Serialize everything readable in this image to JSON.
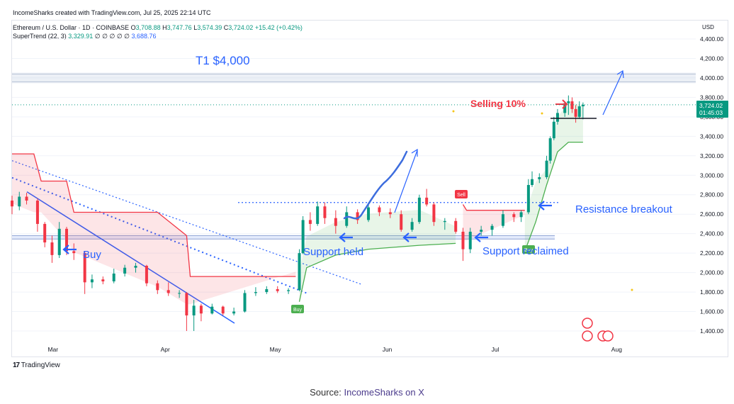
{
  "header": {
    "created": "IncomeSharks created with TradingView.com, Jul 25, 2025 22:14 UTC",
    "symbol": "Ethereum / U.S. Dollar · 1D · COINBASE",
    "ohlc": {
      "o_label": "O",
      "o": "3,708.88",
      "h_label": "H",
      "h": "3,747.76",
      "l_label": "L",
      "l": "3,574.39",
      "c_label": "C",
      "c": "3,724.02",
      "change": "+15.42 (+0.42%)"
    },
    "indicator": "SuperTrend (22, 3)",
    "indicator_value": "3,329.91",
    "indicator_nulls": "∅ ∅ ∅ ∅ ∅",
    "indicator_value2": "3,688.76"
  },
  "axis": {
    "currency": "USD",
    "y_ticks": [
      "4,400.00",
      "4,200.00",
      "4,000.00",
      "3,800.00",
      "3,600.00",
      "3,400.00",
      "3,200.00",
      "3,000.00",
      "2,800.00",
      "2,600.00",
      "2,400.00",
      "2,200.00",
      "2,000.00",
      "1,800.00",
      "1,600.00",
      "1,400.00"
    ],
    "x_ticks": [
      "Mar",
      "Apr",
      "May",
      "Jun",
      "Jul",
      "Aug"
    ],
    "price_tag": "3,724.02",
    "countdown": "01:45:03"
  },
  "annotations": {
    "t1": "T1 $4,000",
    "selling": "Selling 10%",
    "buy": "Buy",
    "support_held": "Support held",
    "support_reclaimed": "Support reclaimed",
    "resistance_breakout": "Resistance breakout",
    "tag_buy1": "Buy",
    "tag_buy2": "Buy",
    "tag_sell": "Sell"
  },
  "branding": {
    "logo_mark": "17",
    "logo_text": "TradingView"
  },
  "footer": {
    "prefix": "Source: ",
    "link": "IncomeSharks on X"
  },
  "colors": {
    "up": "#089981",
    "down": "#f23645",
    "accent": "#2962ff",
    "supertrend_up": "#4caf50",
    "supertrend_down": "#f23645"
  },
  "chart_data": {
    "type": "candlestick",
    "title": "Ethereum / U.S. Dollar · 1D · COINBASE",
    "ylabel": "USD",
    "ylim": [
      1300,
      4500
    ],
    "x_range": [
      "2025-02-18",
      "2025-08-25"
    ],
    "levels": [
      {
        "name": "T1 $4,000",
        "value": 4000
      },
      {
        "name": "support zone",
        "value": 2360
      },
      {
        "name": "resistance dotted",
        "value": 2720
      }
    ],
    "candles": [
      {
        "date": "2025-02-18",
        "o": 2740,
        "h": 2790,
        "l": 2600,
        "c": 2680
      },
      {
        "date": "2025-02-20",
        "o": 2680,
        "h": 2830,
        "l": 2640,
        "c": 2780
      },
      {
        "date": "2025-02-22",
        "o": 2780,
        "h": 2820,
        "l": 2700,
        "c": 2740
      },
      {
        "date": "2025-02-25",
        "o": 2740,
        "h": 2760,
        "l": 2420,
        "c": 2500
      },
      {
        "date": "2025-02-27",
        "o": 2500,
        "h": 2520,
        "l": 2260,
        "c": 2310
      },
      {
        "date": "2025-03-01",
        "o": 2310,
        "h": 2380,
        "l": 2100,
        "c": 2180
      },
      {
        "date": "2025-03-03",
        "o": 2180,
        "h": 2520,
        "l": 2150,
        "c": 2450
      },
      {
        "date": "2025-03-05",
        "o": 2450,
        "h": 2470,
        "l": 2180,
        "c": 2220
      },
      {
        "date": "2025-03-07",
        "o": 2220,
        "h": 2300,
        "l": 2130,
        "c": 2200
      },
      {
        "date": "2025-03-10",
        "o": 2200,
        "h": 2220,
        "l": 1780,
        "c": 1900
      },
      {
        "date": "2025-03-12",
        "o": 1900,
        "h": 1980,
        "l": 1840,
        "c": 1930
      },
      {
        "date": "2025-03-15",
        "o": 1930,
        "h": 1960,
        "l": 1880,
        "c": 1910
      },
      {
        "date": "2025-03-18",
        "o": 1910,
        "h": 2040,
        "l": 1890,
        "c": 1990
      },
      {
        "date": "2025-03-21",
        "o": 1990,
        "h": 2080,
        "l": 1960,
        "c": 2050
      },
      {
        "date": "2025-03-24",
        "o": 2050,
        "h": 2100,
        "l": 2000,
        "c": 2070
      },
      {
        "date": "2025-03-27",
        "o": 2070,
        "h": 2080,
        "l": 1860,
        "c": 1890
      },
      {
        "date": "2025-03-30",
        "o": 1890,
        "h": 1920,
        "l": 1780,
        "c": 1820
      },
      {
        "date": "2025-04-02",
        "o": 1820,
        "h": 1900,
        "l": 1760,
        "c": 1790
      },
      {
        "date": "2025-04-05",
        "o": 1790,
        "h": 1820,
        "l": 1740,
        "c": 1790
      },
      {
        "date": "2025-04-07",
        "o": 1790,
        "h": 1800,
        "l": 1400,
        "c": 1560
      },
      {
        "date": "2025-04-09",
        "o": 1560,
        "h": 1720,
        "l": 1400,
        "c": 1660
      },
      {
        "date": "2025-04-11",
        "o": 1660,
        "h": 1680,
        "l": 1500,
        "c": 1580
      },
      {
        "date": "2025-04-14",
        "o": 1580,
        "h": 1680,
        "l": 1570,
        "c": 1650
      },
      {
        "date": "2025-04-17",
        "o": 1650,
        "h": 1660,
        "l": 1560,
        "c": 1580
      },
      {
        "date": "2025-04-20",
        "o": 1580,
        "h": 1640,
        "l": 1560,
        "c": 1600
      },
      {
        "date": "2025-04-23",
        "o": 1600,
        "h": 1820,
        "l": 1590,
        "c": 1790
      },
      {
        "date": "2025-04-26",
        "o": 1790,
        "h": 1850,
        "l": 1760,
        "c": 1800
      },
      {
        "date": "2025-04-29",
        "o": 1800,
        "h": 1860,
        "l": 1780,
        "c": 1830
      },
      {
        "date": "2025-05-02",
        "o": 1830,
        "h": 1860,
        "l": 1790,
        "c": 1810
      },
      {
        "date": "2025-05-05",
        "o": 1810,
        "h": 1840,
        "l": 1780,
        "c": 1820
      },
      {
        "date": "2025-05-08",
        "o": 1820,
        "h": 2240,
        "l": 1810,
        "c": 2200
      },
      {
        "date": "2025-05-09",
        "o": 2200,
        "h": 2580,
        "l": 2190,
        "c": 2540
      },
      {
        "date": "2025-05-11",
        "o": 2540,
        "h": 2620,
        "l": 2430,
        "c": 2500
      },
      {
        "date": "2025-05-13",
        "o": 2500,
        "h": 2730,
        "l": 2480,
        "c": 2680
      },
      {
        "date": "2025-05-15",
        "o": 2680,
        "h": 2720,
        "l": 2500,
        "c": 2560
      },
      {
        "date": "2025-05-18",
        "o": 2560,
        "h": 2640,
        "l": 2400,
        "c": 2480
      },
      {
        "date": "2025-05-21",
        "o": 2480,
        "h": 2680,
        "l": 2460,
        "c": 2620
      },
      {
        "date": "2025-05-24",
        "o": 2620,
        "h": 2650,
        "l": 2500,
        "c": 2540
      },
      {
        "date": "2025-05-27",
        "o": 2540,
        "h": 2720,
        "l": 2520,
        "c": 2670
      },
      {
        "date": "2025-05-30",
        "o": 2670,
        "h": 2690,
        "l": 2580,
        "c": 2620
      },
      {
        "date": "2025-06-02",
        "o": 2620,
        "h": 2660,
        "l": 2560,
        "c": 2600
      },
      {
        "date": "2025-06-05",
        "o": 2600,
        "h": 2640,
        "l": 2420,
        "c": 2440
      },
      {
        "date": "2025-06-08",
        "o": 2440,
        "h": 2560,
        "l": 2420,
        "c": 2520
      },
      {
        "date": "2025-06-10",
        "o": 2520,
        "h": 2800,
        "l": 2500,
        "c": 2770
      },
      {
        "date": "2025-06-12",
        "o": 2770,
        "h": 2860,
        "l": 2680,
        "c": 2700
      },
      {
        "date": "2025-06-14",
        "o": 2700,
        "h": 2720,
        "l": 2480,
        "c": 2520
      },
      {
        "date": "2025-06-17",
        "o": 2520,
        "h": 2560,
        "l": 2440,
        "c": 2530
      },
      {
        "date": "2025-06-20",
        "o": 2530,
        "h": 2560,
        "l": 2400,
        "c": 2420
      },
      {
        "date": "2025-06-22",
        "o": 2420,
        "h": 2460,
        "l": 2120,
        "c": 2240
      },
      {
        "date": "2025-06-24",
        "o": 2240,
        "h": 2460,
        "l": 2200,
        "c": 2420
      },
      {
        "date": "2025-06-27",
        "o": 2420,
        "h": 2480,
        "l": 2380,
        "c": 2440
      },
      {
        "date": "2025-06-30",
        "o": 2440,
        "h": 2500,
        "l": 2380,
        "c": 2480
      },
      {
        "date": "2025-07-03",
        "o": 2480,
        "h": 2640,
        "l": 2460,
        "c": 2600
      },
      {
        "date": "2025-07-06",
        "o": 2600,
        "h": 2620,
        "l": 2520,
        "c": 2570
      },
      {
        "date": "2025-07-08",
        "o": 2570,
        "h": 2640,
        "l": 2520,
        "c": 2620
      },
      {
        "date": "2025-07-10",
        "o": 2620,
        "h": 2960,
        "l": 2600,
        "c": 2900
      },
      {
        "date": "2025-07-11",
        "o": 2900,
        "h": 3040,
        "l": 2880,
        "c": 2960
      },
      {
        "date": "2025-07-13",
        "o": 2960,
        "h": 3020,
        "l": 2920,
        "c": 2980
      },
      {
        "date": "2025-07-15",
        "o": 2980,
        "h": 3200,
        "l": 2960,
        "c": 3150
      },
      {
        "date": "2025-07-16",
        "o": 3150,
        "h": 3400,
        "l": 3120,
        "c": 3380
      },
      {
        "date": "2025-07-17",
        "o": 3380,
        "h": 3600,
        "l": 3360,
        "c": 3550
      },
      {
        "date": "2025-07-18",
        "o": 3550,
        "h": 3680,
        "l": 3520,
        "c": 3640
      },
      {
        "date": "2025-07-20",
        "o": 3640,
        "h": 3760,
        "l": 3600,
        "c": 3740
      },
      {
        "date": "2025-07-21",
        "o": 3740,
        "h": 3820,
        "l": 3620,
        "c": 3760
      },
      {
        "date": "2025-07-22",
        "o": 3760,
        "h": 3800,
        "l": 3640,
        "c": 3680
      },
      {
        "date": "2025-07-23",
        "o": 3680,
        "h": 3720,
        "l": 3540,
        "c": 3600
      },
      {
        "date": "2025-07-24",
        "o": 3600,
        "h": 3760,
        "l": 3580,
        "c": 3708
      },
      {
        "date": "2025-07-25",
        "o": 3708.88,
        "h": 3747.76,
        "l": 3574.39,
        "c": 3724.02
      }
    ],
    "supertrend_down": [
      {
        "date": "2025-02-18",
        "v": 3220
      },
      {
        "date": "2025-02-24",
        "v": 3220
      },
      {
        "date": "2025-02-26",
        "v": 2940
      },
      {
        "date": "2025-03-05",
        "v": 2940
      },
      {
        "date": "2025-03-07",
        "v": 2620
      },
      {
        "date": "2025-03-30",
        "v": 2620
      },
      {
        "date": "2025-04-07",
        "v": 2380
      },
      {
        "date": "2025-04-08",
        "v": 1960
      },
      {
        "date": "2025-05-07",
        "v": 1960
      }
    ],
    "supertrend_up_1": [
      {
        "date": "2025-05-08",
        "v": 1700
      },
      {
        "date": "2025-05-10",
        "v": 2050
      },
      {
        "date": "2025-05-18",
        "v": 2180
      },
      {
        "date": "2025-05-27",
        "v": 2240
      },
      {
        "date": "2025-06-10",
        "v": 2280
      },
      {
        "date": "2025-06-20",
        "v": 2300
      }
    ],
    "supertrend_down_2": [
      {
        "date": "2025-06-22",
        "v": 2700
      },
      {
        "date": "2025-06-23",
        "v": 2640
      },
      {
        "date": "2025-07-09",
        "v": 2640
      }
    ],
    "supertrend_up_2": [
      {
        "date": "2025-07-09",
        "v": 2220
      },
      {
        "date": "2025-07-12",
        "v": 2520
      },
      {
        "date": "2025-07-15",
        "v": 2900
      },
      {
        "date": "2025-07-18",
        "v": 3240
      },
      {
        "date": "2025-07-21",
        "v": 3340
      },
      {
        "date": "2025-07-25",
        "v": 3340
      }
    ]
  }
}
